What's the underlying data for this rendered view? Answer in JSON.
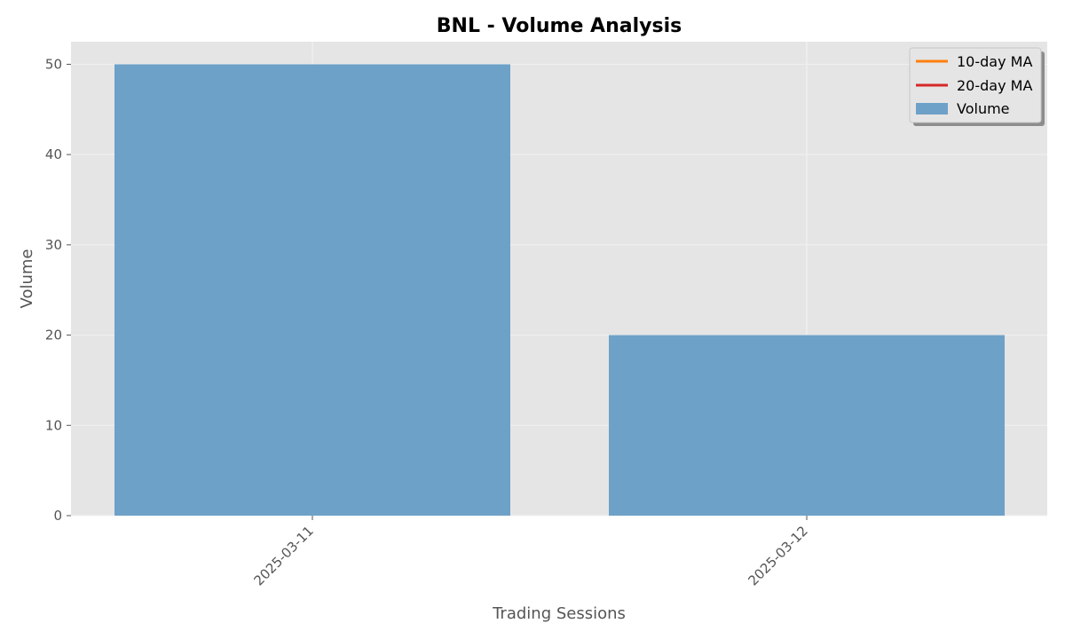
{
  "chart_data": {
    "type": "bar",
    "title": "BNL - Volume Analysis",
    "xlabel": "Trading Sessions",
    "ylabel": "Volume",
    "categories": [
      "2025-03-11",
      "2025-03-12"
    ],
    "series": [
      {
        "name": "Volume",
        "values": [
          50,
          20
        ],
        "color": "#6ea1c7"
      }
    ],
    "lines": [
      {
        "name": "10-day MA",
        "color": "#ff7f0e",
        "values": []
      },
      {
        "name": "20-day MA",
        "color": "#d62728",
        "values": []
      }
    ],
    "ylim": [
      0,
      52.5
    ],
    "yticks": [
      0,
      10,
      20,
      30,
      40,
      50
    ],
    "grid": true,
    "legend_position": "top-right",
    "legend": {
      "ma10_label": "10-day MA",
      "ma20_label": "20-day MA",
      "volume_label": "Volume"
    },
    "colors": {
      "plot_background": "#e5e5e5",
      "grid": "#f2f2f2",
      "bar": "#6ea1c7",
      "ma10": "#ff7f0e",
      "ma20": "#d62728"
    }
  }
}
